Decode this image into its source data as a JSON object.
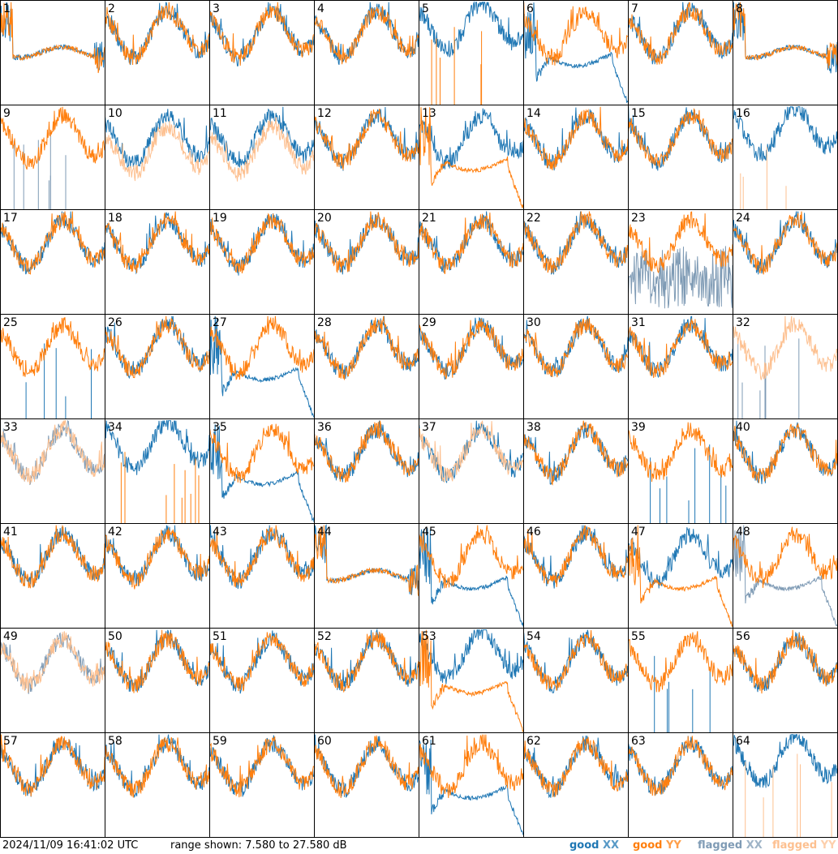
{
  "chart_data": {
    "type": "line",
    "grid": {
      "rows": 8,
      "cols": 8
    },
    "legend": [
      {
        "label": "good",
        "pol": "XX",
        "color": "#1f77b4"
      },
      {
        "label": "good",
        "pol": "YY",
        "color": "#ff7f0e"
      },
      {
        "label": "flagged",
        "pol": "XX",
        "color": "#7f9bb5"
      },
      {
        "label": "flagged",
        "pol": "YY",
        "color": "#fdc090"
      }
    ],
    "ylim_db": [
      7.58,
      27.58
    ],
    "panels": [
      {
        "id": 1,
        "xx": "good",
        "yy": "good",
        "xx_shape": "dip",
        "yy_shape": "dip"
      },
      {
        "id": 2,
        "xx": "good",
        "yy": "good",
        "xx_shape": "normal",
        "yy_shape": "normal"
      },
      {
        "id": 3,
        "xx": "good",
        "yy": "good",
        "xx_shape": "normal",
        "yy_shape": "normal"
      },
      {
        "id": 4,
        "xx": "good",
        "yy": "good",
        "xx_shape": "normal",
        "yy_shape": "normal"
      },
      {
        "id": 5,
        "xx": "good",
        "yy": "good",
        "xx_shape": "normal_high",
        "yy_shape": "spikes"
      },
      {
        "id": 6,
        "xx": "good",
        "yy": "good",
        "xx_shape": "dip_fall",
        "yy_shape": "normal"
      },
      {
        "id": 7,
        "xx": "good",
        "yy": "good",
        "xx_shape": "normal",
        "yy_shape": "normal"
      },
      {
        "id": 8,
        "xx": "good",
        "yy": "good",
        "xx_shape": "dip",
        "yy_shape": "dip"
      },
      {
        "id": 9,
        "xx": "flagged",
        "yy": "good",
        "xx_shape": "spikes",
        "yy_shape": "normal"
      },
      {
        "id": 10,
        "xx": "good",
        "yy": "flagged",
        "xx_shape": "normal",
        "yy_shape": "normal_low"
      },
      {
        "id": 11,
        "xx": "good",
        "yy": "flagged",
        "xx_shape": "normal",
        "yy_shape": "normal_low"
      },
      {
        "id": 12,
        "xx": "good",
        "yy": "good",
        "xx_shape": "normal",
        "yy_shape": "normal"
      },
      {
        "id": 13,
        "xx": "good",
        "yy": "good",
        "xx_shape": "normal",
        "yy_shape": "dip_fall"
      },
      {
        "id": 14,
        "xx": "good",
        "yy": "good",
        "xx_shape": "normal",
        "yy_shape": "normal"
      },
      {
        "id": 15,
        "xx": "good",
        "yy": "good",
        "xx_shape": "normal",
        "yy_shape": "normal"
      },
      {
        "id": 16,
        "xx": "good",
        "yy": "flagged",
        "xx_shape": "normal_high",
        "yy_shape": "spikes"
      },
      {
        "id": 17,
        "xx": "good",
        "yy": "good",
        "xx_shape": "normal",
        "yy_shape": "normal"
      },
      {
        "id": 18,
        "xx": "good",
        "yy": "good",
        "xx_shape": "normal",
        "yy_shape": "normal"
      },
      {
        "id": 19,
        "xx": "good",
        "yy": "good",
        "xx_shape": "normal",
        "yy_shape": "normal"
      },
      {
        "id": 20,
        "xx": "good",
        "yy": "good",
        "xx_shape": "normal",
        "yy_shape": "normal"
      },
      {
        "id": 21,
        "xx": "good",
        "yy": "good",
        "xx_shape": "normal",
        "yy_shape": "normal"
      },
      {
        "id": 22,
        "xx": "good",
        "yy": "good",
        "xx_shape": "normal",
        "yy_shape": "normal"
      },
      {
        "id": 23,
        "xx": "flagged",
        "yy": "good",
        "xx_shape": "noise",
        "yy_shape": "normal"
      },
      {
        "id": 24,
        "xx": "good",
        "yy": "good",
        "xx_shape": "normal",
        "yy_shape": "normal"
      },
      {
        "id": 25,
        "xx": "good",
        "yy": "good",
        "xx_shape": "spikes",
        "yy_shape": "normal"
      },
      {
        "id": 26,
        "xx": "good",
        "yy": "good",
        "xx_shape": "normal",
        "yy_shape": "normal"
      },
      {
        "id": 27,
        "xx": "good",
        "yy": "good",
        "xx_shape": "dip_fall",
        "yy_shape": "normal"
      },
      {
        "id": 28,
        "xx": "good",
        "yy": "good",
        "xx_shape": "normal",
        "yy_shape": "normal"
      },
      {
        "id": 29,
        "xx": "good",
        "yy": "good",
        "xx_shape": "normal",
        "yy_shape": "normal"
      },
      {
        "id": 30,
        "xx": "good",
        "yy": "good",
        "xx_shape": "normal",
        "yy_shape": "normal"
      },
      {
        "id": 31,
        "xx": "good",
        "yy": "good",
        "xx_shape": "normal",
        "yy_shape": "normal"
      },
      {
        "id": 32,
        "xx": "flagged",
        "yy": "flagged",
        "xx_shape": "spikes",
        "yy_shape": "normal"
      },
      {
        "id": 33,
        "xx": "flagged",
        "yy": "flagged",
        "xx_shape": "normal",
        "yy_shape": "normal"
      },
      {
        "id": 34,
        "xx": "good",
        "yy": "good",
        "xx_shape": "normal_high",
        "yy_shape": "spikes"
      },
      {
        "id": 35,
        "xx": "good",
        "yy": "good",
        "xx_shape": "dip_fall",
        "yy_shape": "normal"
      },
      {
        "id": 36,
        "xx": "good",
        "yy": "good",
        "xx_shape": "normal",
        "yy_shape": "normal"
      },
      {
        "id": 37,
        "xx": "good",
        "yy": "flagged",
        "xx_shape": "normal",
        "yy_shape": "normal"
      },
      {
        "id": 38,
        "xx": "good",
        "yy": "good",
        "xx_shape": "normal",
        "yy_shape": "normal"
      },
      {
        "id": 39,
        "xx": "good",
        "yy": "good",
        "xx_shape": "spikes",
        "yy_shape": "normal"
      },
      {
        "id": 40,
        "xx": "good",
        "yy": "good",
        "xx_shape": "normal",
        "yy_shape": "normal"
      },
      {
        "id": 41,
        "xx": "good",
        "yy": "good",
        "xx_shape": "normal",
        "yy_shape": "normal"
      },
      {
        "id": 42,
        "xx": "good",
        "yy": "good",
        "xx_shape": "normal",
        "yy_shape": "normal"
      },
      {
        "id": 43,
        "xx": "good",
        "yy": "good",
        "xx_shape": "normal",
        "yy_shape": "normal"
      },
      {
        "id": 44,
        "xx": "good",
        "yy": "good",
        "xx_shape": "dip",
        "yy_shape": "dip"
      },
      {
        "id": 45,
        "xx": "good",
        "yy": "good",
        "xx_shape": "dip_fall",
        "yy_shape": "normal"
      },
      {
        "id": 46,
        "xx": "good",
        "yy": "good",
        "xx_shape": "normal",
        "yy_shape": "normal"
      },
      {
        "id": 47,
        "xx": "good",
        "yy": "good",
        "xx_shape": "normal",
        "yy_shape": "dip_fall"
      },
      {
        "id": 48,
        "xx": "flagged",
        "yy": "good",
        "xx_shape": "dip_fall",
        "yy_shape": "normal"
      },
      {
        "id": 49,
        "xx": "flagged",
        "yy": "flagged",
        "xx_shape": "normal",
        "yy_shape": "normal"
      },
      {
        "id": 50,
        "xx": "good",
        "yy": "good",
        "xx_shape": "normal",
        "yy_shape": "normal"
      },
      {
        "id": 51,
        "xx": "good",
        "yy": "good",
        "xx_shape": "normal",
        "yy_shape": "normal"
      },
      {
        "id": 52,
        "xx": "good",
        "yy": "good",
        "xx_shape": "normal",
        "yy_shape": "normal"
      },
      {
        "id": 53,
        "xx": "good",
        "yy": "good",
        "xx_shape": "normal_high",
        "yy_shape": "dip_fall"
      },
      {
        "id": 54,
        "xx": "good",
        "yy": "good",
        "xx_shape": "normal",
        "yy_shape": "normal"
      },
      {
        "id": 55,
        "xx": "good",
        "yy": "good",
        "xx_shape": "spikes",
        "yy_shape": "normal"
      },
      {
        "id": 56,
        "xx": "good",
        "yy": "good",
        "xx_shape": "normal",
        "yy_shape": "normal"
      },
      {
        "id": 57,
        "xx": "good",
        "yy": "good",
        "xx_shape": "normal",
        "yy_shape": "normal"
      },
      {
        "id": 58,
        "xx": "good",
        "yy": "good",
        "xx_shape": "normal",
        "yy_shape": "normal"
      },
      {
        "id": 59,
        "xx": "good",
        "yy": "good",
        "xx_shape": "normal",
        "yy_shape": "normal"
      },
      {
        "id": 60,
        "xx": "good",
        "yy": "good",
        "xx_shape": "normal",
        "yy_shape": "normal"
      },
      {
        "id": 61,
        "xx": "good",
        "yy": "good",
        "xx_shape": "dip_fall",
        "yy_shape": "normal"
      },
      {
        "id": 62,
        "xx": "good",
        "yy": "good",
        "xx_shape": "normal",
        "yy_shape": "normal"
      },
      {
        "id": 63,
        "xx": "good",
        "yy": "good",
        "xx_shape": "normal",
        "yy_shape": "normal"
      },
      {
        "id": 64,
        "xx": "good",
        "yy": "flagged",
        "xx_shape": "normal_high",
        "yy_shape": "spikes"
      }
    ]
  },
  "footer": {
    "timestamp": "2024/11/09 16:41:02 UTC",
    "range_text": "range shown: 7.580 to 27.580 dB",
    "legend": {
      "good_word": "good",
      "flagged_word": "flagged",
      "xx": "XX",
      "yy": "YY"
    }
  }
}
